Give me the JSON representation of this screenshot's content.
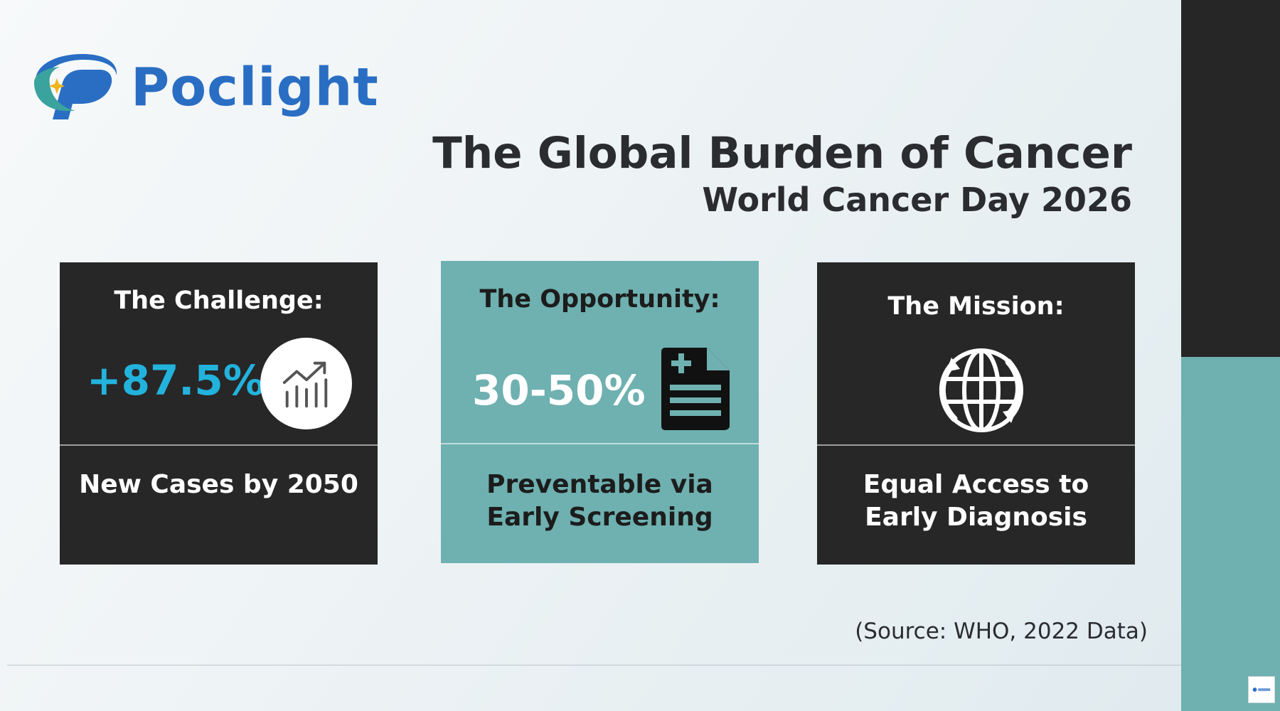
{
  "brand": {
    "name": "Poclight",
    "logo_icon": "poclight-logo-icon"
  },
  "header": {
    "title": "The Global Burden of Cancer",
    "subtitle": "World Cancer Day 2026"
  },
  "cards": [
    {
      "heading": "The Challenge:",
      "stat": "+87.5%",
      "description": "New Cases by 2050",
      "icon": "trend-chart-icon"
    },
    {
      "heading": "The Opportunity:",
      "stat": "30-50%",
      "description": [
        "Preventable via",
        "Early Screening"
      ],
      "icon": "medical-document-icon"
    },
    {
      "heading": "The Mission:",
      "description": [
        "Equal Access to",
        "Early Diagnosis"
      ],
      "icon": "globe-icon"
    }
  ],
  "footer": {
    "source": "(Source: WHO, 2022 Data)"
  },
  "colors": {
    "accent_blue": "#2a6ec4",
    "stat_cyan": "#22b3dd",
    "teal": "#6fb0b0",
    "dark": "#272727"
  }
}
